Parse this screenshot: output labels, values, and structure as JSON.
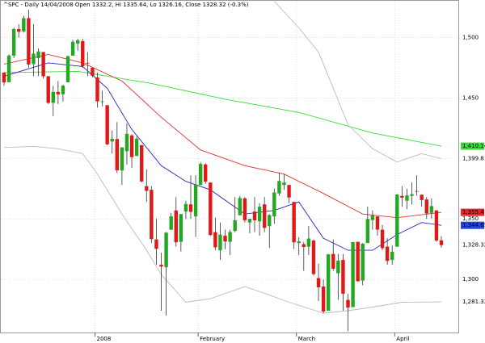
{
  "chart_data": {
    "type": "candlestick",
    "title": "^SPC - Daily 14/04/2008 Open 1332.2, Hi 1335.64, Lo 1326.16, Close 1328.32 (-0.3%)",
    "categories": [
      null,
      null,
      null,
      null,
      null,
      null,
      null,
      null,
      null,
      null,
      null,
      null,
      null,
      null,
      null,
      null,
      null,
      null,
      null,
      "2008",
      null,
      null,
      null,
      null,
      null,
      null,
      null,
      null,
      null,
      null,
      null,
      null,
      null,
      null,
      null,
      null,
      null,
      null,
      null,
      null,
      "February",
      null,
      null,
      null,
      null,
      null,
      null,
      null,
      null,
      null,
      null,
      null,
      null,
      null,
      null,
      null,
      null,
      null,
      null,
      null,
      "March",
      null,
      null,
      null,
      null,
      null,
      null,
      null,
      null,
      null,
      null,
      null,
      null,
      null,
      null,
      null,
      null,
      null,
      null,
      null,
      "April",
      null,
      null,
      null,
      null,
      null,
      null,
      null,
      null,
      null
    ],
    "open": [
      1471,
      1463,
      1485,
      1507,
      1505,
      1516,
      1478,
      1483,
      1488,
      1468,
      1446,
      1455,
      1453,
      1463,
      1485,
      1495,
      1497,
      1479,
      1475,
      1467,
      1447,
      1444,
      1414,
      1416,
      1390,
      1406,
      1419,
      1402,
      1411,
      1377,
      1374,
      1333,
      1312,
      1310,
      1341,
      1357,
      1331,
      1356,
      1362,
      1352,
      1378,
      1395,
      1380,
      1339,
      1324,
      1336,
      1331,
      1340,
      1353,
      1367,
      1347,
      1356,
      1348,
      1362,
      1344,
      1352,
      1371,
      1378,
      1378,
      1364,
      1330,
      1329,
      1327,
      1332,
      1301,
      1294,
      1274,
      1321,
      1305,
      1316,
      1283,
      1277,
      1331,
      1299,
      1330,
      1349,
      1352,
      1341,
      1327,
      1316,
      1327,
      1369,
      1365,
      1369,
      1373,
      1370,
      1366,
      1355,
      1357,
      1332.2
    ],
    "high": [
      1471,
      1486,
      1508,
      1511,
      1518,
      1523,
      1511,
      1491,
      1488,
      1468,
      1460,
      1464,
      1461,
      1485,
      1498,
      1499,
      1499,
      1488,
      1475,
      1471,
      1456,
      1444,
      1423,
      1430,
      1409.2,
      1429,
      1420,
      1418,
      1411,
      1391,
      1377,
      1350,
      1322,
      1339,
      1355,
      1368,
      1354,
      1365,
      1386,
      1386,
      1397,
      1396,
      1380,
      1351,
      1347,
      1341,
      1341,
      1368,
      1369,
      1368,
      1350,
      1368,
      1363,
      1368,
      1354,
      1375,
      1388,
      1387,
      1378,
      1364,
      1335,
      1331,
      1344,
      1333,
      1313,
      1300,
      1321,
      1333,
      1321,
      1321,
      1288,
      1331,
      1331,
      1330,
      1360,
      1357,
      1352,
      1345,
      1334,
      1328,
      1370.5,
      1377,
      1375,
      1380,
      1386,
      1370,
      1368,
      1367,
      1357,
      1335.64
    ],
    "low": [
      1460,
      1463,
      1483,
      1500,
      1504,
      1475,
      1468,
      1468,
      1466,
      1445,
      1435,
      1445,
      1447,
      1463,
      1485,
      1489,
      1475,
      1468,
      1467,
      1442,
      1443,
      1411,
      1404,
      1388,
      1378,
      1395,
      1392,
      1402,
      1380,
      1364,
      1330,
      1312,
      1274,
      1270,
      1341,
      1327,
      1323,
      1350,
      1350,
      1335,
      1378,
      1379,
      1336,
      1324,
      1316,
      1325,
      1320,
      1339,
      1353,
      1347,
      1338,
      1339,
      1336,
      1339,
      1326,
      1346,
      1369,
      1374,
      1363,
      1325,
      1320,
      1307,
      1320,
      1303,
      1282,
      1272,
      1274,
      1307,
      1283,
      1274,
      1256.98,
      1277,
      1298,
      1295,
      1330,
      1341,
      1336,
      1324,
      1312,
      1312,
      1327,
      1360,
      1358,
      1362,
      1369,
      1360,
      1350,
      1350,
      1331,
      1326.16
    ],
    "close": [
      1462.8,
      1485,
      1507,
      1504.7,
      1515.96,
      1477.65,
      1486.59,
      1488.41,
      1467.95,
      1445.9,
      1454.98,
      1453,
      1460.12,
      1484.46,
      1496.45,
      1497.66,
      1476.27,
      1478.49,
      1468.36,
      1447.16,
      1447.16,
      1411.63,
      1416.18,
      1390.19,
      1409.13,
      1420.33,
      1401.02,
      1416.25,
      1380.95,
      1373.2,
      1333.25,
      1325.19,
      1310.5,
      1338.6,
      1352.07,
      1330.61,
      1353.96,
      1362.3,
      1355.81,
      1378.55,
      1395.42,
      1380.82,
      1336.64,
      1326.45,
      1336.91,
      1331.29,
      1339.13,
      1348.86,
      1367.21,
      1348.86,
      1349.99,
      1348.78,
      1360.03,
      1342.53,
      1353.11,
      1371.8,
      1381.29,
      1380.02,
      1367.68,
      1330.63,
      1331.34,
      1326.75,
      1333.7,
      1304.34,
      1293.37,
      1273.37,
      1320.65,
      1308.77,
      1315.48,
      1288.14,
      1276.6,
      1330.74,
      1298.42,
      1329.51,
      1349.88,
      1352.99,
      1341.13,
      1325.76,
      1315.22,
      1322.7,
      1370.18,
      1367.53,
      1369.31,
      1370.4,
      1372.54,
      1365.54,
      1354.49,
      1360.55,
      1332.09,
      1328.32
    ],
    "close_label": "1,328.32",
    "up_color": "#22a822",
    "down_color": "#e01818",
    "ylim": [
      1256,
      1531
    ],
    "yticks": [
      {
        "value": 1300,
        "label": "1,300"
      },
      {
        "value": 1350,
        "label": "1,350"
      },
      {
        "value": 1400,
        "label": "1,400"
      },
      {
        "value": 1450,
        "label": "1,450"
      },
      {
        "value": 1500,
        "label": "1,500"
      }
    ],
    "grid": true,
    "lines": [
      {
        "color": "#33dd33",
        "label_color": "#33dd33",
        "x": [
          0,
          15,
          30,
          45,
          60,
          75,
          89
        ],
        "values": [
          1471,
          1472,
          1462,
          1449,
          1438,
          1421,
          1410.14
        ],
        "last_label": "1,410.14"
      },
      {
        "color": "#e03030",
        "label_color": "#ee2222",
        "x": [
          0,
          9,
          16,
          24,
          32,
          40,
          49,
          57,
          65,
          73,
          80,
          89
        ],
        "values": [
          1478,
          1486,
          1479,
          1464,
          1434,
          1407,
          1394,
          1387,
          1371,
          1354,
          1351,
          1355.4
        ],
        "last_label": "1,355.4"
      },
      {
        "color": "#2222cc",
        "label_color": "#2244ee",
        "x": [
          0,
          9,
          16,
          21,
          26,
          32,
          37,
          42,
          49,
          55,
          60,
          65,
          70,
          75,
          80,
          85,
          89
        ],
        "values": [
          1468,
          1479,
          1476,
          1458,
          1424,
          1394,
          1381,
          1374,
          1354,
          1357,
          1364,
          1334,
          1324,
          1324,
          1337,
          1347,
          1344.65
        ],
        "last_label": "1,344.65"
      },
      {
        "color": "#bbbbbb",
        "label_color": "#ffffff",
        "x": [
          55,
          60,
          64,
          67,
          70,
          75,
          80,
          85,
          89
        ],
        "values": [
          1530,
          1508,
          1488,
          1458,
          1428,
          1408,
          1397,
          1404,
          1399.8
        ],
        "last_label": "1,399.8"
      },
      {
        "color": "#bbbbbb",
        "label_color": "#ffffff",
        "x": [
          0,
          6,
          11,
          16,
          19,
          24,
          29,
          32,
          37,
          42,
          49,
          54,
          58,
          65,
          70,
          75,
          81,
          89
        ],
        "values": [
          1409,
          1410,
          1408,
          1404,
          1387,
          1354,
          1324,
          1304,
          1281,
          1284,
          1294,
          1287,
          1281,
          1272,
          1274,
          1277,
          1281,
          1281.32
        ],
        "last_label": "1,281.32"
      }
    ]
  }
}
